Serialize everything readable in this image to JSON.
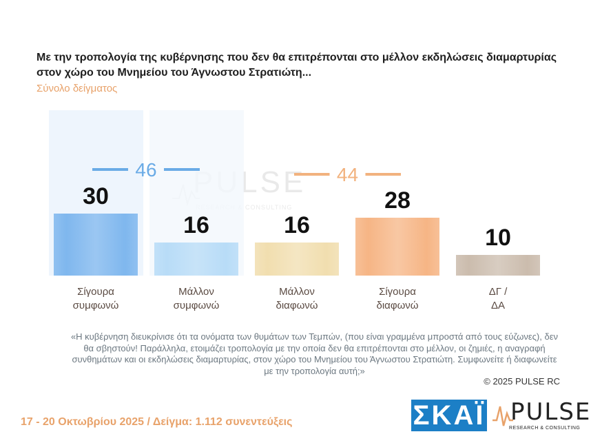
{
  "title": "Με την τροπολογία της κυβέρνησης που δεν θα επιτρέπονται στο μέλλον εκδηλώσεις διαμαρτυρίας στον χώρο του Μνημείου του Άγνωστου Στρατιώτη...",
  "subtitle": "Σύνολο δείγματος",
  "chart_data": {
    "type": "bar",
    "categories": [
      "Σίγουρα συμφωνώ",
      "Μάλλον συμφωνώ",
      "Μάλλον διαφωνώ",
      "Σίγουρα διαφωνώ",
      "ΔΓ / ΔΑ"
    ],
    "category_lines": [
      [
        "Σίγουρα",
        "συμφωνώ"
      ],
      [
        "Μάλλον",
        "συμφωνώ"
      ],
      [
        "Μάλλον",
        "διαφωνώ"
      ],
      [
        "Σίγουρα",
        "διαφωνώ"
      ],
      [
        "ΔΓ /",
        "ΔΑ"
      ]
    ],
    "values": [
      30,
      16,
      16,
      28,
      10
    ],
    "value_labels": [
      "30",
      "16",
      "16",
      "28",
      "10"
    ],
    "ylim": [
      0,
      30
    ],
    "groups": [
      {
        "label": "46",
        "value": 46,
        "color": "#6aabe6"
      },
      {
        "label": "44",
        "value": 44,
        "color": "#f2b27e"
      }
    ],
    "colors": [
      "#7fb7ee",
      "#b8dcf7",
      "#f1deaf",
      "#f6b585",
      "#cbbcad"
    ],
    "title": "Με την τροπολογία της κυβέρνησης που δεν θα επιτρέπονται στο μέλλον εκδηλώσεις διαμαρτυρίας στον χώρο του Μνημείου του Άγνωστου Στρατιώτη...",
    "subtitle": "Σύνολο δείγματος",
    "legend": "none",
    "grid": false
  },
  "quote": "«Η κυβέρνηση διευκρίνισε ότι τα ονόματα των θυμάτων των Τεμπών, (που είναι γραμμένα μπροστά από τους εύζωνες), δεν θα σβηστούν! Παράλληλα, ετοιμάζει τροπολογία με την οποία δεν θα επιτρέπονται στο μέλλον, οι ζημιές, η αναγραφή συνθημάτων και οι εκδηλώσεις διαμαρτυρίας, στον χώρο του Μνημείου του Άγνωστου Στρατιώτη. Συμφωνείτε ή διαφωνείτε με την τροπολογία αυτή;»",
  "copyright": "© 2025 PULSE RC",
  "footer": "17 - 20 Οκτωβρίου 2025  /  Δείγμα:  1.112 συνεντεύξεις",
  "logos": {
    "skai": "ΣΚΑΪ",
    "pulse": "PULSE",
    "pulse_tag": "RESEARCH & CONSULTING"
  },
  "watermark": {
    "word": "PULSE",
    "tag": "RESEARCH & CONSULTING"
  }
}
